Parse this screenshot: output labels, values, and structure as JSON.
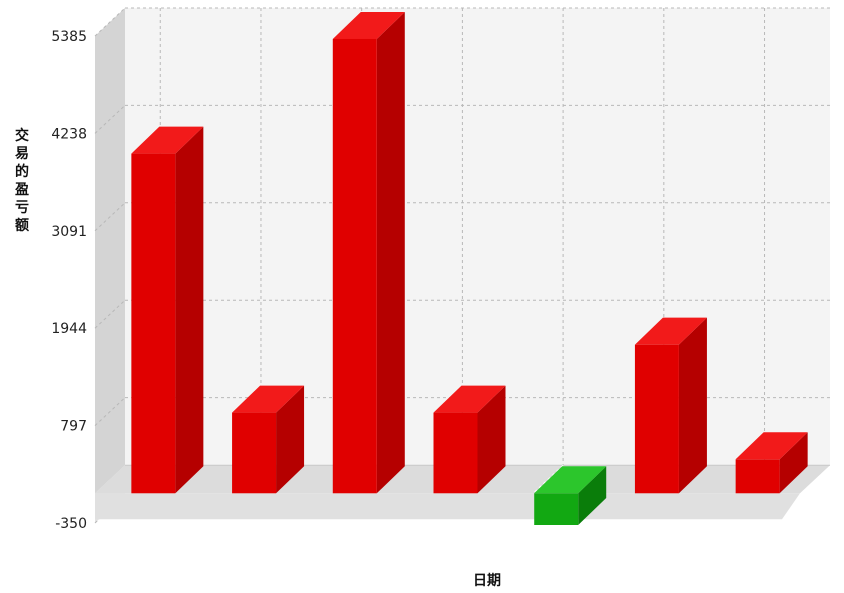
{
  "chart_data": {
    "type": "bar",
    "title": "",
    "xlabel": "日期",
    "ylabel": "交易的盈亏额",
    "ylim": [
      -350,
      5385
    ],
    "yticks": [
      -350,
      797,
      1944,
      3091,
      4238,
      5385
    ],
    "categories": [
      "",
      "",
      "",
      "",
      "",
      "",
      ""
    ],
    "values": [
      4000,
      950,
      5350,
      950,
      -350,
      1750,
      400
    ],
    "grid": true,
    "legend": "none",
    "style": "3d",
    "colors": {
      "positive_front": "#e00000",
      "positive_side": "#b50000",
      "positive_top": "#f21a1a",
      "negative_front": "#12a812",
      "negative_side": "#0a7d0a",
      "negative_top": "#2cc62c",
      "wall": "#f4f4f4",
      "wall_side": "#d4d4d4",
      "floor": "#dcdcdc",
      "grid": "#b8b8b8"
    }
  }
}
